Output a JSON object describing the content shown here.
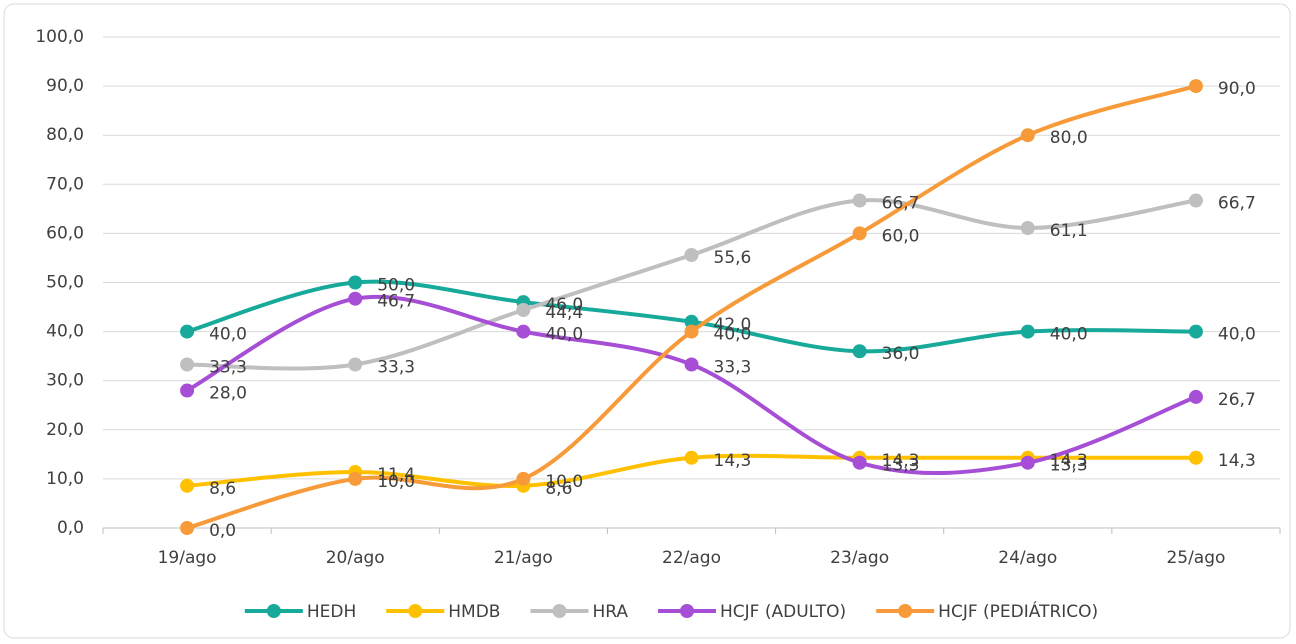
{
  "chart_data": {
    "type": "line",
    "categories": [
      "19/ago",
      "20/ago",
      "21/ago",
      "22/ago",
      "23/ago",
      "24/ago",
      "25/ago"
    ],
    "series": [
      {
        "name": "HEDH",
        "color": "#17a99a",
        "values": [
          40,
          50,
          46,
          42,
          36,
          40,
          40
        ],
        "value_labels": [
          "40,0",
          "50,0",
          "46,0",
          "42,0",
          "36,0",
          "40,0",
          "40,0"
        ]
      },
      {
        "name": "HMDB",
        "color": "#ffc000",
        "values": [
          8.6,
          11.4,
          8.6,
          14.3,
          14.3,
          14.3,
          14.3
        ],
        "value_labels": [
          "8,6",
          "11,4",
          "8,6",
          "14,3",
          "14,3",
          "14,3",
          "14,3"
        ]
      },
      {
        "name": "HRA",
        "color": "#bfbfbf",
        "values": [
          33.3,
          33.3,
          44.4,
          55.6,
          66.7,
          61.1,
          66.7
        ],
        "value_labels": [
          "33,3",
          "33,3",
          "44,4",
          "55,6",
          "66,7",
          "61,1",
          "66,7"
        ]
      },
      {
        "name": "HCJF (ADULTO)",
        "color": "#a64fd6",
        "values": [
          28,
          46.7,
          40,
          33.3,
          13.3,
          13.3,
          26.7
        ],
        "value_labels": [
          "28,0",
          "46,7",
          "40,0",
          "33,3",
          "13,3",
          "13,3",
          "26,7"
        ]
      },
      {
        "name": "HCJF (PEDIÁTRICO)",
        "color": "#f79a3a",
        "values": [
          0,
          10,
          10,
          40,
          60,
          80,
          90
        ],
        "value_labels": [
          "0,0",
          "10,0",
          "10,0",
          "40,0",
          "60,0",
          "80,0",
          "90,0"
        ]
      }
    ],
    "ylim": [
      0,
      100
    ],
    "yticks": [
      {
        "value": 0,
        "label": "0,0"
      },
      {
        "value": 10,
        "label": "10,0"
      },
      {
        "value": 20,
        "label": "20,0"
      },
      {
        "value": 30,
        "label": "30,0"
      },
      {
        "value": 40,
        "label": "40,0"
      },
      {
        "value": 50,
        "label": "50,0"
      },
      {
        "value": 60,
        "label": "60,0"
      },
      {
        "value": 70,
        "label": "70,0"
      },
      {
        "value": 80,
        "label": "80,0"
      },
      {
        "value": 90,
        "label": "90,0"
      },
      {
        "value": 100,
        "label": "100,0"
      }
    ],
    "grid": true,
    "smooth": true,
    "legend": "bottom"
  }
}
